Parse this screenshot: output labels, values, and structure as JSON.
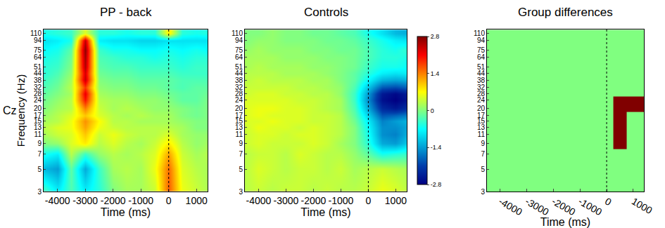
{
  "chart_data": [
    {
      "type": "heatmap",
      "title": "PP - back",
      "xlabel": "Time (ms)",
      "ylabel": "Frequency (Hz)",
      "annotations": [
        "Cz"
      ],
      "log": "y",
      "vline": 0,
      "xlim": [
        -4500,
        1400
      ],
      "ylim": [
        3,
        120
      ],
      "xticks": [
        -4000,
        -3000,
        -2000,
        -1000,
        0,
        1000
      ],
      "yticks": [
        3,
        5,
        7,
        9,
        11,
        13,
        15,
        17,
        20,
        24,
        28,
        32,
        38,
        44,
        51,
        64,
        75,
        94,
        110
      ],
      "zlim": [
        -2.8,
        2.8
      ],
      "x": [
        -4500,
        -4000,
        -3500,
        -3000,
        -2500,
        -2000,
        -1500,
        -1000,
        -500,
        0,
        500,
        1000,
        1500
      ],
      "y": [
        3,
        5,
        7,
        9,
        11,
        13,
        15,
        17,
        20,
        24,
        28,
        32,
        38,
        44,
        51,
        64,
        75,
        94,
        110
      ],
      "z": [
        [
          -0.3,
          -0.8,
          -0.3,
          -0.8,
          -0.5,
          0,
          0.2,
          0.2,
          0.4,
          1.6,
          0.6,
          0.4,
          0.2
        ],
        [
          -1.2,
          -1.4,
          -0.2,
          -1.3,
          -0.4,
          0.2,
          0.3,
          0.2,
          0.6,
          1.5,
          0.5,
          0.3,
          0.2
        ],
        [
          -0.6,
          -0.8,
          0.3,
          -0.4,
          0.1,
          0.3,
          0.2,
          0.3,
          0.5,
          1.2,
          0.4,
          0.2,
          0.3
        ],
        [
          0,
          0.1,
          0.5,
          0.8,
          0.3,
          0.5,
          0.3,
          0.2,
          0.4,
          0.8,
          0.3,
          0.1,
          0.2
        ],
        [
          0.2,
          0.4,
          0.5,
          1.0,
          0.4,
          0.6,
          0.4,
          0.3,
          0.3,
          0.5,
          0.2,
          0.1,
          0.1
        ],
        [
          0.3,
          0.5,
          0.6,
          1.2,
          0.6,
          0.4,
          0.3,
          0.3,
          0.3,
          0.3,
          0.2,
          0,
          0
        ],
        [
          0.2,
          0.3,
          0.6,
          1.3,
          0.7,
          0.3,
          0.3,
          0.2,
          0.2,
          0.2,
          0.1,
          0,
          0
        ],
        [
          0.1,
          0.3,
          0.5,
          1.0,
          0.5,
          0.3,
          0.2,
          0.3,
          0.2,
          0.2,
          0,
          -0.1,
          0
        ],
        [
          0,
          0.2,
          0.3,
          1.4,
          0.4,
          0.2,
          0.3,
          0.2,
          0.1,
          0.1,
          0,
          -0.1,
          0
        ],
        [
          -0.1,
          0.1,
          0.3,
          2.0,
          0.3,
          0.2,
          0.2,
          0.1,
          0.1,
          0,
          -0.2,
          -0.2,
          0
        ],
        [
          -0.2,
          0,
          0.2,
          2.2,
          0.2,
          0.1,
          0.1,
          0,
          0,
          -0.1,
          -0.2,
          -0.2,
          -0.1
        ],
        [
          -0.3,
          -0.1,
          0.3,
          1.8,
          0.1,
          0,
          0,
          -0.1,
          -0.1,
          -0.2,
          -0.3,
          -0.2,
          -0.2
        ],
        [
          -0.4,
          -0.2,
          0.2,
          2.4,
          0,
          -0.1,
          -0.1,
          -0.2,
          -0.2,
          -0.2,
          -0.3,
          -0.3,
          -0.3
        ],
        [
          -0.5,
          -0.3,
          0.1,
          2.3,
          -0.1,
          -0.2,
          -0.2,
          -0.3,
          -0.3,
          -0.3,
          -0.4,
          -0.4,
          -0.4
        ],
        [
          -0.5,
          -0.4,
          0,
          2.5,
          -0.2,
          -0.3,
          -0.3,
          -0.4,
          -0.4,
          -0.4,
          -0.5,
          -0.4,
          -0.4
        ],
        [
          -0.6,
          -0.5,
          -0.1,
          2.6,
          -0.3,
          -0.4,
          -0.5,
          -0.5,
          -0.6,
          -0.5,
          -0.6,
          -0.5,
          -0.5
        ],
        [
          -0.7,
          -0.6,
          -0.2,
          2.7,
          -0.4,
          -0.6,
          -0.6,
          -0.7,
          -0.7,
          -0.6,
          -0.7,
          -0.6,
          -0.7
        ],
        [
          -0.9,
          -0.8,
          -0.6,
          2.4,
          -0.8,
          -0.9,
          -0.9,
          -1.0,
          -1.0,
          -0.9,
          -0.9,
          -0.9,
          -0.9
        ],
        [
          -0.6,
          -0.5,
          -0.4,
          0.5,
          -0.5,
          -0.5,
          -0.6,
          -0.5,
          -0.5,
          0.8,
          -0.5,
          -0.6,
          -0.5
        ]
      ]
    },
    {
      "type": "heatmap",
      "title": "Controls",
      "xlabel": "Time (ms)",
      "log": "y",
      "vline": 0,
      "xlim": [
        -4500,
        1400
      ],
      "ylim": [
        3,
        120
      ],
      "xticks": [
        -4000,
        -3000,
        -2000,
        -1000,
        0,
        1000
      ],
      "yticks": [
        3,
        5,
        7,
        9,
        11,
        13,
        15,
        17,
        20,
        24,
        28,
        32,
        38,
        44,
        51,
        64,
        75,
        94,
        110
      ],
      "zlim": [
        -2.8,
        2.8
      ],
      "colorbar": {
        "ticks": [
          2.8,
          1.4,
          0,
          -1.4,
          -2.8
        ]
      },
      "x": [
        -4500,
        -4000,
        -3500,
        -3000,
        -2500,
        -2000,
        -1500,
        -1000,
        -500,
        0,
        500,
        1000,
        1500
      ],
      "y": [
        3,
        5,
        7,
        9,
        11,
        13,
        15,
        17,
        20,
        24,
        28,
        32,
        38,
        44,
        51,
        64,
        75,
        94,
        110
      ],
      "z": [
        [
          0.3,
          0.4,
          0.3,
          0.4,
          0.4,
          0.3,
          0.4,
          0.3,
          0.3,
          0.4,
          0.6,
          0.5,
          0.3
        ],
        [
          0.3,
          0.5,
          0.4,
          0.3,
          0.4,
          0.4,
          0.3,
          0.4,
          0.2,
          0.3,
          0.4,
          0.3,
          0.2
        ],
        [
          0.3,
          0.4,
          0.4,
          0.3,
          0.5,
          0.4,
          0.3,
          0.3,
          0.1,
          -0.2,
          -0.6,
          -0.5,
          -0.4
        ],
        [
          0.4,
          0.5,
          0.4,
          0.4,
          0.4,
          0.5,
          0.4,
          0.2,
          0,
          -0.5,
          -1.3,
          -1.4,
          -1.0
        ],
        [
          0.4,
          0.5,
          0.5,
          0.4,
          0.5,
          0.5,
          0.4,
          0.3,
          0,
          -0.6,
          -1.5,
          -1.6,
          -1.2
        ],
        [
          0.4,
          0.6,
          0.5,
          0.5,
          0.4,
          0.5,
          0.4,
          0.3,
          0,
          -0.7,
          -1.5,
          -1.5,
          -1.3
        ],
        [
          0.5,
          0.5,
          0.6,
          0.5,
          0.5,
          0.4,
          0.4,
          0.3,
          -0.1,
          -0.8,
          -1.6,
          -1.4,
          -1.2
        ],
        [
          0.5,
          0.6,
          0.5,
          0.5,
          0.5,
          0.4,
          0.4,
          0.3,
          -0.2,
          -1.0,
          -1.9,
          -1.8,
          -1.6
        ],
        [
          0.5,
          0.6,
          0.6,
          0.5,
          0.5,
          0.4,
          0.3,
          0.2,
          -0.3,
          -1.3,
          -2.3,
          -2.5,
          -2.2
        ],
        [
          0.5,
          0.5,
          0.5,
          0.5,
          0.4,
          0.4,
          0.3,
          0.2,
          -0.4,
          -1.5,
          -2.6,
          -2.8,
          -2.5
        ],
        [
          0.4,
          0.5,
          0.5,
          0.4,
          0.4,
          0.3,
          0.3,
          0.1,
          -0.4,
          -1.4,
          -2.5,
          -2.7,
          -2.4
        ],
        [
          0.4,
          0.4,
          0.4,
          0.4,
          0.3,
          0.3,
          0.2,
          0.1,
          -0.3,
          -1.1,
          -1.9,
          -2.0,
          -1.8
        ],
        [
          0.3,
          0.4,
          0.3,
          0.3,
          0.3,
          0.2,
          0.2,
          0,
          -0.2,
          -0.7,
          -1.2,
          -1.3,
          -1.2
        ],
        [
          0.3,
          0.3,
          0.3,
          0.2,
          0.2,
          0.2,
          0.1,
          0,
          -0.2,
          -0.5,
          -0.8,
          -0.9,
          -0.8
        ],
        [
          0.2,
          0.3,
          0.2,
          0.2,
          0.2,
          0.1,
          0.1,
          0,
          -0.1,
          -0.4,
          -0.6,
          -0.6,
          -0.7
        ],
        [
          0.2,
          0.2,
          0.2,
          0.1,
          0.1,
          0.1,
          0,
          0,
          -0.1,
          -0.3,
          -0.5,
          -0.5,
          -0.6
        ],
        [
          0.1,
          0.2,
          0.1,
          0.1,
          0.1,
          0,
          0,
          -0.1,
          -0.1,
          -0.3,
          -0.5,
          -0.6,
          -0.4
        ],
        [
          0,
          0.1,
          0.1,
          0,
          0,
          0,
          -0.1,
          -0.1,
          -0.2,
          -0.4,
          -0.6,
          -0.8,
          -0.9
        ],
        [
          0,
          0,
          0.1,
          0,
          0,
          -0.1,
          -0.1,
          -0.2,
          -0.3,
          -0.6,
          -0.9,
          -1.2,
          -1.3
        ]
      ]
    },
    {
      "type": "heatmap",
      "title": "Group differences",
      "xlabel": "Time (ms)",
      "log": "y",
      "vline": 0,
      "xlim": [
        -4500,
        1400
      ],
      "ylim": [
        3,
        120
      ],
      "xticks": [
        -4000,
        -3000,
        -2000,
        -1000,
        0,
        1000
      ],
      "yticks": [
        3,
        5,
        7,
        9,
        11,
        13,
        15,
        17,
        20,
        24,
        28,
        32,
        38,
        44,
        51,
        64,
        75,
        94,
        110
      ],
      "zlim": [
        0,
        1
      ],
      "colors": [
        "#80ff80",
        "#800000"
      ],
      "x": [
        -4500,
        -4000,
        -3500,
        -3000,
        -2500,
        -2000,
        -1500,
        -1000,
        -500,
        0,
        500,
        1000,
        1500
      ],
      "y": [
        3,
        5,
        7,
        9,
        11,
        13,
        15,
        17,
        20,
        24,
        28,
        32,
        38,
        44,
        51,
        64,
        75,
        94,
        110
      ],
      "z": [
        [
          0,
          0,
          0,
          0,
          0,
          0,
          0,
          0,
          0,
          0,
          0,
          0,
          0
        ],
        [
          0,
          0,
          0,
          0,
          0,
          0,
          0,
          0,
          0,
          0,
          0,
          0,
          0
        ],
        [
          0,
          0,
          0,
          0,
          0,
          0,
          0,
          0,
          0,
          0,
          0,
          0,
          0
        ],
        [
          0,
          0,
          0,
          0,
          0,
          0,
          0,
          0,
          0,
          0,
          1,
          0,
          0
        ],
        [
          0,
          0,
          0,
          0,
          0,
          0,
          0,
          0,
          0,
          0,
          1,
          0,
          0
        ],
        [
          0,
          0,
          0,
          0,
          0,
          0,
          0,
          0,
          0,
          0,
          1,
          0,
          0
        ],
        [
          0,
          0,
          0,
          0,
          0,
          0,
          0,
          0,
          0,
          0,
          1,
          0,
          0
        ],
        [
          0,
          0,
          0,
          0,
          0,
          0,
          0,
          0,
          0,
          0,
          1,
          0,
          0
        ],
        [
          0,
          0,
          0,
          0,
          0,
          0,
          0,
          0,
          0,
          0,
          1,
          1,
          1
        ],
        [
          0,
          0,
          0,
          0,
          0,
          0,
          0,
          0,
          0,
          0,
          1,
          1,
          1
        ],
        [
          0,
          0,
          0,
          0,
          0,
          0,
          0,
          0,
          0,
          0,
          0,
          0,
          0
        ],
        [
          0,
          0,
          0,
          0,
          0,
          0,
          0,
          0,
          0,
          0,
          0,
          0,
          0
        ],
        [
          0,
          0,
          0,
          0,
          0,
          0,
          0,
          0,
          0,
          0,
          0,
          0,
          0
        ],
        [
          0,
          0,
          0,
          0,
          0,
          0,
          0,
          0,
          0,
          0,
          0,
          0,
          0
        ],
        [
          0,
          0,
          0,
          0,
          0,
          0,
          0,
          0,
          0,
          0,
          0,
          0,
          0
        ],
        [
          0,
          0,
          0,
          0,
          0,
          0,
          0,
          0,
          0,
          0,
          0,
          0,
          0
        ],
        [
          0,
          0,
          0,
          0,
          0,
          0,
          0,
          0,
          0,
          0,
          0,
          0,
          0
        ],
        [
          0,
          0,
          0,
          0,
          0,
          0,
          0,
          0,
          0,
          0,
          0,
          0,
          0
        ],
        [
          0,
          0,
          0,
          0,
          0,
          0,
          0,
          0,
          0,
          0,
          0,
          0,
          0
        ]
      ]
    }
  ]
}
